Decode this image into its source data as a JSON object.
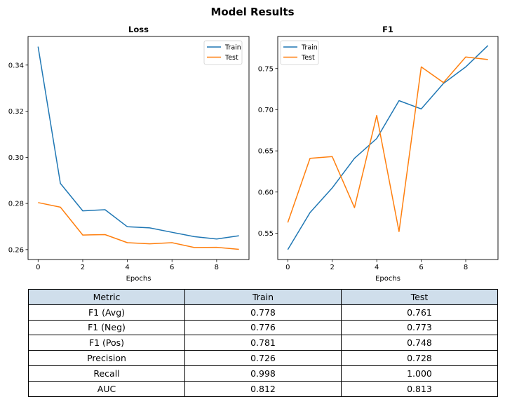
{
  "title": "Model Results",
  "chart_data": [
    {
      "type": "line",
      "title": "Loss",
      "xlabel": "Epochs",
      "ylabel": "",
      "x": [
        0,
        1,
        2,
        3,
        4,
        5,
        6,
        7,
        8,
        9
      ],
      "xlim": [
        -0.45,
        9.45
      ],
      "ylim": [
        0.2557,
        0.3524
      ],
      "xticks": [
        0,
        2,
        4,
        6,
        8
      ],
      "yticks": [
        0.26,
        0.28,
        0.3,
        0.32,
        0.34
      ],
      "grid": false,
      "legend_position": "top-right",
      "series": [
        {
          "name": "Train",
          "color": "#1f77b4",
          "values": [
            0.348,
            0.2887,
            0.2768,
            0.2773,
            0.2699,
            0.2694,
            0.2675,
            0.2656,
            0.2646,
            0.266
          ]
        },
        {
          "name": "Test",
          "color": "#ff7f0e",
          "values": [
            0.2804,
            0.2784,
            0.2663,
            0.2665,
            0.263,
            0.2625,
            0.263,
            0.2609,
            0.261,
            0.2601
          ]
        }
      ]
    },
    {
      "type": "line",
      "title": "F1",
      "xlabel": "Epochs",
      "ylabel": "",
      "x": [
        0,
        1,
        2,
        3,
        4,
        5,
        6,
        7,
        8,
        9
      ],
      "xlim": [
        -0.45,
        9.45
      ],
      "ylim": [
        0.518,
        0.789
      ],
      "xticks": [
        0,
        2,
        4,
        6,
        8
      ],
      "yticks": [
        0.55,
        0.6,
        0.65,
        0.7,
        0.75
      ],
      "grid": false,
      "legend_position": "top-left",
      "series": [
        {
          "name": "Train",
          "color": "#1f77b4",
          "values": [
            0.53,
            0.575,
            0.605,
            0.641,
            0.665,
            0.711,
            0.701,
            0.732,
            0.752,
            0.778
          ]
        },
        {
          "name": "Test",
          "color": "#ff7f0e",
          "values": [
            0.563,
            0.641,
            0.643,
            0.581,
            0.693,
            0.552,
            0.752,
            0.733,
            0.764,
            0.761
          ]
        }
      ]
    }
  ],
  "table": {
    "headers": [
      "Metric",
      "Train",
      "Test"
    ],
    "rows": [
      [
        "F1 (Avg)",
        "0.778",
        "0.761"
      ],
      [
        "F1 (Neg)",
        "0.776",
        "0.773"
      ],
      [
        "F1 (Pos)",
        "0.781",
        "0.748"
      ],
      [
        "Precision",
        "0.726",
        "0.728"
      ],
      [
        "Recall",
        "0.998",
        "1.000"
      ],
      [
        "AUC",
        "0.812",
        "0.813"
      ]
    ]
  }
}
